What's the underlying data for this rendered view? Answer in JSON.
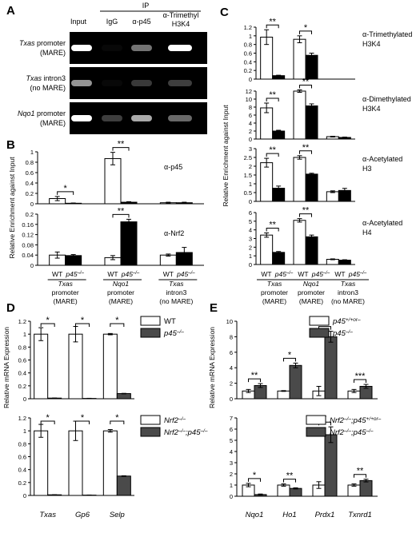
{
  "panel_labels": {
    "A": "A",
    "B": "B",
    "C": "C",
    "D": "D",
    "E": "E"
  },
  "gel": {
    "ip_header": "IP",
    "columns": [
      "Input",
      "IgG",
      "α-p45",
      "α-Trimethyl",
      "H3K4"
    ],
    "rows": [
      {
        "gene": "Txas",
        "line1_rest": " promoter",
        "line2": "(MARE)"
      },
      {
        "gene": "Txas",
        "line1_rest": " intron3",
        "line2": "(no MARE)"
      },
      {
        "gene": "Nqo1",
        "line1_rest": " promoter",
        "line2": "(MARE)"
      }
    ],
    "band_intensities": [
      [
        1.0,
        0.05,
        0.35,
        1.0
      ],
      [
        0.5,
        0.05,
        0.08,
        0.1
      ],
      [
        1.0,
        0.1,
        0.6,
        0.3
      ]
    ]
  },
  "chart_data": [
    {
      "id": "B-p45",
      "type": "bar",
      "title": "α-p45",
      "ylabel": "Relative Enrichment against Input",
      "ylim": [
        0,
        1
      ],
      "yticks": [
        "0",
        "0.2",
        "0.4",
        "0.6",
        "0.8",
        "1"
      ],
      "categories": [
        "Txas promoter (MARE)",
        "Nqo1 promoter (MARE)",
        "Txas intron3 (no MARE)"
      ],
      "series": [
        {
          "name": "WT",
          "values": [
            0.1,
            0.87,
            0.02
          ]
        },
        {
          "name": "p45⁻/⁻",
          "values": [
            0.01,
            0.03,
            0.02
          ]
        }
      ],
      "errors": [
        [
          0.04,
          0.12,
          0.01
        ],
        [
          0.005,
          0.01,
          0.01
        ]
      ],
      "significance": [
        {
          "group": 0,
          "label": "*"
        },
        {
          "group": 1,
          "label": "**"
        }
      ]
    },
    {
      "id": "B-Nrf2",
      "type": "bar",
      "title": "α-Nrf2",
      "ylim": [
        0,
        0.2
      ],
      "yticks": [
        "0",
        "0.04",
        "0.08",
        "0.12",
        "0.16",
        "0.2"
      ],
      "categories": [
        "Txas promoter (MARE)",
        "Nqo1 promoter (MARE)",
        "Txas intron3 (no MARE)"
      ],
      "series": [
        {
          "name": "WT",
          "values": [
            0.04,
            0.03,
            0.04
          ]
        },
        {
          "name": "p45⁻/⁻",
          "values": [
            0.038,
            0.17,
            0.05
          ]
        }
      ],
      "errors": [
        [
          0.012,
          0.008,
          0.004
        ],
        [
          0.004,
          0.01,
          0.02
        ]
      ],
      "significance": [
        {
          "group": 1,
          "label": "**"
        }
      ]
    },
    {
      "id": "C-H3K4me3",
      "type": "bar",
      "title": "α-Trimethylated H3K4",
      "ylim": [
        0,
        1.2
      ],
      "yticks": [
        "0",
        "0.2",
        "0.4",
        "0.6",
        "0.8",
        "1",
        "1.2"
      ],
      "categories": [
        "Txas promoter (MARE)",
        "Nqo1 promoter (MARE)",
        "Txas intron3 (no MARE)"
      ],
      "series": [
        {
          "name": "WT",
          "values": [
            0.97,
            0.92,
            0
          ]
        },
        {
          "name": "p45⁻/⁻",
          "values": [
            0.08,
            0.55,
            0
          ]
        }
      ],
      "errors": [
        [
          0.17,
          0.08,
          0
        ],
        [
          0.01,
          0.05,
          0
        ]
      ],
      "significance": [
        {
          "group": 0,
          "label": "**"
        },
        {
          "group": 1,
          "label": "*"
        }
      ]
    },
    {
      "id": "C-H3K4me2",
      "type": "bar",
      "title": "α-Dimethylated H3K4",
      "ylabel": "Relative Enrichment against Input",
      "ylim": [
        0,
        12
      ],
      "yticks": [
        "0",
        "2",
        "4",
        "6",
        "8",
        "10",
        "12"
      ],
      "categories": [
        "Txas promoter (MARE)",
        "Nqo1 promoter (MARE)",
        "Txas intron3 (no MARE)"
      ],
      "series": [
        {
          "name": "WT",
          "values": [
            7.8,
            12,
            0.6
          ]
        },
        {
          "name": "p45⁻/⁻",
          "values": [
            2,
            8.3,
            0.4
          ]
        }
      ],
      "errors": [
        [
          1.2,
          0.3,
          0.1
        ],
        [
          0.2,
          0.5,
          0.1
        ]
      ],
      "significance": [
        {
          "group": 0,
          "label": "**"
        },
        {
          "group": 1,
          "label": "**"
        }
      ]
    },
    {
      "id": "C-H3ac",
      "type": "bar",
      "title": "α-Acetylated H3",
      "ylim": [
        0,
        3
      ],
      "yticks": [
        "0",
        "0.5",
        "1",
        "1.5",
        "2",
        "2.5",
        "3"
      ],
      "categories": [
        "Txas promoter (MARE)",
        "Nqo1 promoter (MARE)",
        "Txas intron3 (no MARE)"
      ],
      "series": [
        {
          "name": "WT",
          "values": [
            2.2,
            2.5,
            0.55
          ]
        },
        {
          "name": "p45⁻/⁻",
          "values": [
            0.75,
            1.55,
            0.62
          ]
        }
      ],
      "errors": [
        [
          0.25,
          0.1,
          0.05
        ],
        [
          0.12,
          0.05,
          0.12
        ]
      ],
      "significance": [
        {
          "group": 0,
          "label": "**"
        },
        {
          "group": 1,
          "label": "**"
        }
      ]
    },
    {
      "id": "C-H4ac",
      "type": "bar",
      "title": "α-Acetylated H4",
      "ylim": [
        0,
        6
      ],
      "yticks": [
        "0",
        "1",
        "2",
        "3",
        "4",
        "5",
        "6"
      ],
      "categories": [
        "Txas promoter (MARE)",
        "Nqo1 promoter (MARE)",
        "Txas intron3 (no MARE)"
      ],
      "series": [
        {
          "name": "WT",
          "values": [
            3.4,
            5.1,
            0.6
          ]
        },
        {
          "name": "p45⁻/⁻",
          "values": [
            1.4,
            3.2,
            0.5
          ]
        }
      ],
      "errors": [
        [
          0.25,
          0.2,
          0.05
        ],
        [
          0.1,
          0.2,
          0.05
        ]
      ],
      "significance": [
        {
          "group": 0,
          "label": "**"
        },
        {
          "group": 1,
          "label": "**"
        }
      ]
    },
    {
      "id": "D-top",
      "type": "bar",
      "ylabel": "Relative mRNA Expression",
      "ylim": [
        0,
        1.2
      ],
      "yticks": [
        "0",
        "0.2",
        "0.4",
        "0.6",
        "0.8",
        "1",
        "1.2"
      ],
      "categories": [
        "Txas",
        "Gp6",
        "Selp"
      ],
      "series": [
        {
          "name": "WT",
          "values": [
            1.0,
            1.0,
            1.0
          ]
        },
        {
          "name": "p45⁻/⁻",
          "values": [
            0.01,
            0.005,
            0.08
          ]
        }
      ],
      "errors": [
        [
          0.1,
          0.12,
          0.01
        ],
        [
          0.002,
          0.002,
          0.004
        ]
      ],
      "significance": [
        {
          "group": 0,
          "label": "*"
        },
        {
          "group": 1,
          "label": "*"
        },
        {
          "group": 2,
          "label": "*"
        }
      ]
    },
    {
      "id": "D-bottom",
      "type": "bar",
      "ylim": [
        0,
        1.2
      ],
      "yticks": [
        "0",
        "0.2",
        "0.4",
        "0.6",
        "0.8",
        "1",
        "1.2"
      ],
      "categories": [
        "Txas",
        "Gp6",
        "Selp"
      ],
      "series": [
        {
          "name": "Nrf2⁻/⁻",
          "values": [
            1.0,
            1.0,
            1.0
          ]
        },
        {
          "name": "Nrf2⁻/⁻;p45⁻/⁻",
          "values": [
            0.01,
            0.005,
            0.3
          ]
        }
      ],
      "errors": [
        [
          0.1,
          0.15,
          0.02
        ],
        [
          0.002,
          0.002,
          0.005
        ]
      ],
      "significance": [
        {
          "group": 0,
          "label": "*"
        },
        {
          "group": 1,
          "label": "*"
        },
        {
          "group": 2,
          "label": "*"
        }
      ]
    },
    {
      "id": "E-top",
      "type": "bar",
      "ylabel": "Relative mRNA Expression",
      "ylim": [
        0,
        10
      ],
      "yticks": [
        "0",
        "2",
        "4",
        "6",
        "8",
        "10"
      ],
      "categories": [
        "Nqo1",
        "Ho1",
        "Prdx1",
        "Txnrd1"
      ],
      "series": [
        {
          "name": "p45⁺/⁺ or ⁻",
          "values": [
            1.0,
            1.0,
            1.0,
            1.0
          ]
        },
        {
          "name": "p45⁻/⁻",
          "values": [
            1.7,
            4.3,
            8.0,
            1.6
          ]
        }
      ],
      "errors": [
        [
          0.2,
          0.05,
          0.6,
          0.2
        ],
        [
          0.25,
          0.3,
          0.7,
          0.25
        ]
      ],
      "significance": [
        {
          "group": 0,
          "label": "**"
        },
        {
          "group": 1,
          "label": "*"
        },
        {
          "group": 2,
          "label": "*"
        },
        {
          "group": 3,
          "label": "***"
        }
      ]
    },
    {
      "id": "E-bottom",
      "type": "bar",
      "ylim": [
        0,
        7
      ],
      "yticks": [
        "0",
        "1",
        "2",
        "3",
        "4",
        "5",
        "6",
        "7"
      ],
      "categories": [
        "Nqo1",
        "Ho1",
        "Prdx1",
        "Txnrd1"
      ],
      "series": [
        {
          "name": "Nrf2⁻/⁻;p45⁺/⁺ or ⁻",
          "values": [
            1.0,
            1.0,
            1.0,
            1.0
          ]
        },
        {
          "name": "Nrf2⁻/⁻;p45⁻/⁻",
          "values": [
            0.15,
            0.7,
            5.5,
            1.4
          ]
        }
      ],
      "errors": [
        [
          0.15,
          0.1,
          0.3,
          0.1
        ],
        [
          0.05,
          0.05,
          0.7,
          0.12
        ]
      ],
      "significance": [
        {
          "group": 0,
          "label": "*"
        },
        {
          "group": 1,
          "label": "**"
        },
        {
          "group": 2,
          "label": "*"
        },
        {
          "group": 3,
          "label": "**"
        }
      ]
    }
  ],
  "b_categories": [
    {
      "gene": "Txas",
      "l2": "promoter",
      "l3": "(MARE)"
    },
    {
      "gene": "Nqo1",
      "l2": "promoter",
      "l3": "(MARE)"
    },
    {
      "gene": "Txas",
      "l2": "intron3",
      "l3": "(no MARE)"
    }
  ],
  "genotype_labels": {
    "wt": "WT",
    "ko": "p45",
    "ko_sup": "–/–"
  },
  "legends": {
    "D_top": [
      {
        "label": "WT"
      },
      {
        "label": "p45",
        "sup": "–/–"
      }
    ],
    "D_bottom": [
      {
        "label": "Nrf2",
        "sup": "–/–"
      },
      {
        "label": "Nrf2",
        "sup": "–/–",
        "label2": ";p45",
        "sup2": "–/–"
      }
    ],
    "E_top": [
      {
        "label": "p45",
        "sup": "+/+or–"
      },
      {
        "label": "p45",
        "sup": "–/–"
      }
    ],
    "E_bottom": [
      {
        "label": "Nrf2",
        "sup": "–/–",
        "label2": ";p45",
        "sup2": "+/+or–"
      },
      {
        "label": "Nrf2",
        "sup": "–/–",
        "label2": ";p45",
        "sup2": "–/–"
      }
    ]
  },
  "colors": {
    "wt": "#ffffff",
    "ko_black": "#000000",
    "ko_gray": "#4a4a4a"
  }
}
